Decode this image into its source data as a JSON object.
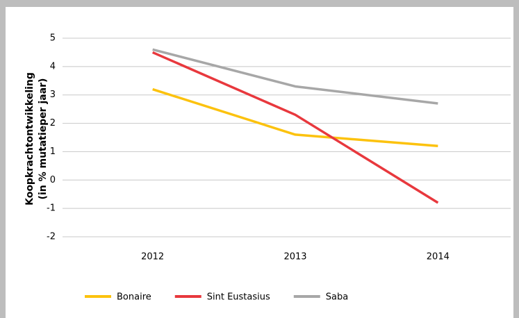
{
  "chart_data": {
    "type": "line",
    "y_label": [
      "Koopkrachtontwikkeling",
      "(in % mutatieper jaar)"
    ],
    "categories": [
      "2012",
      "2013",
      "2014"
    ],
    "series": [
      {
        "name": "Bonaire",
        "color": "#fcc20e",
        "values": [
          3.2,
          1.6,
          1.2
        ]
      },
      {
        "name": "Sint Eustasius",
        "color": "#e8383d",
        "values": [
          4.5,
          2.3,
          -0.8
        ]
      },
      {
        "name": "Saba",
        "color": "#a7a7a7",
        "values": [
          4.6,
          3.3,
          2.7
        ]
      }
    ],
    "ylim": [
      -2,
      5
    ],
    "yticks": [
      -2,
      -1,
      0,
      1,
      2,
      3,
      4,
      5
    ],
    "grid": true,
    "legend": "bottom"
  }
}
